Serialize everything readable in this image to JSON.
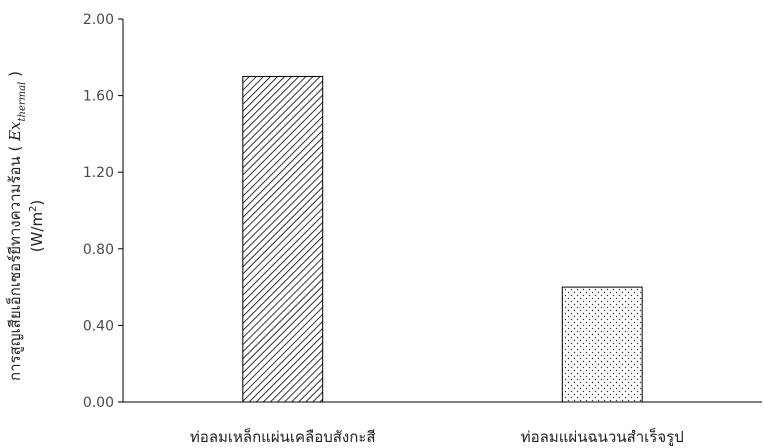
{
  "chart_data": {
    "type": "bar",
    "title": "",
    "xlabel": "",
    "ylabel": {
      "line1_prefix": "การสูญเสียเอ็กเซอร์ยีทางความร้อน ( ",
      "symbol": "Ex",
      "subscript": "thermal",
      "line1_suffix": " )",
      "line2": "(W/m",
      "line2_sup": "2",
      "line2_end": ")"
    },
    "categories": [
      "ท่อลมเหล็กแผ่นเคลือบสังกะสี",
      "ท่อลมแผ่นฉนวนสำเร็จรูป"
    ],
    "values": [
      1.7,
      0.6
    ],
    "patterns": [
      "diagonal-hatch",
      "dots"
    ],
    "ylim": [
      0.0,
      2.0
    ],
    "yticks": [
      "0.00",
      "0.40",
      "0.80",
      "1.20",
      "1.60",
      "2.00"
    ],
    "grid": false,
    "legend": "none",
    "colors": {
      "bar_fill": "#ffffff",
      "bar_stroke": "#000000",
      "axis": "#000000"
    }
  }
}
